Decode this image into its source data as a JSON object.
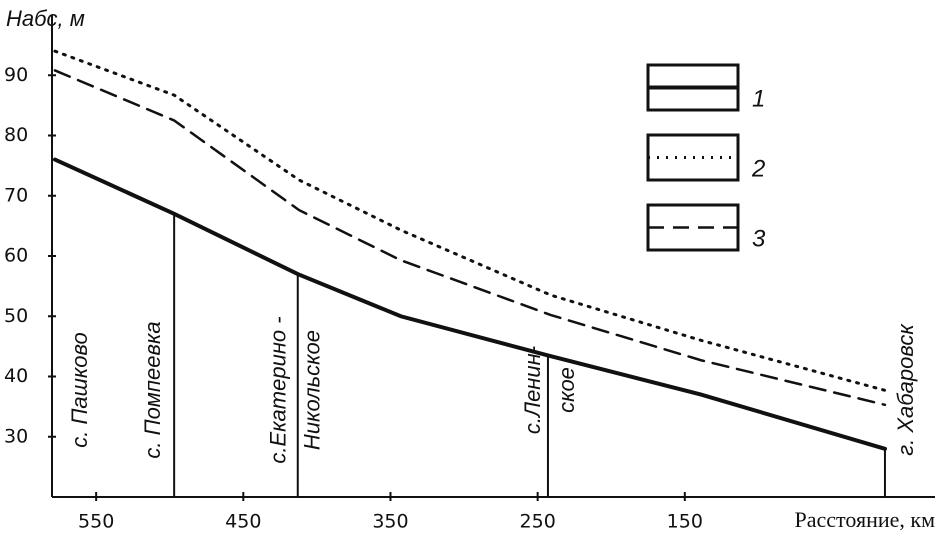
{
  "chart_data": {
    "type": "line",
    "y_label": "Hабс, м",
    "x_label": "Расстояние, км",
    "xlim": [
      580,
      -20
    ],
    "ylim": [
      20,
      100
    ],
    "xticks": [
      550,
      450,
      350,
      250,
      150
    ],
    "yticks": [
      30,
      40,
      50,
      60,
      70,
      80,
      90
    ],
    "legend": "upper right",
    "series": [
      {
        "name": "1",
        "color": "#111111",
        "style": "solid",
        "x": [
          578,
          497,
          413,
          343,
          243,
          139,
          14
        ],
        "values": [
          76,
          67,
          57,
          50,
          43.5,
          37,
          28
        ]
      },
      {
        "name": "2",
        "color": "#111111",
        "style": "dotted",
        "x": [
          578,
          497,
          412,
          343,
          241,
          139,
          14
        ],
        "values": [
          94,
          86.7,
          72.6,
          64.3,
          53.5,
          46,
          37.7
        ]
      },
      {
        "name": "3",
        "color": "#111111",
        "style": "dashed",
        "x": [
          578,
          497,
          412,
          343,
          241,
          139,
          14
        ],
        "values": [
          90.8,
          82.5,
          67.6,
          59.3,
          50.2,
          42.7,
          35.3
        ]
      }
    ],
    "annotations": [
      {
        "lines": [
          "с. Пашково"
        ],
        "x": 578
      },
      {
        "lines": [
          "с. Помпеевка"
        ],
        "x": 497
      },
      {
        "lines": [
          "с.Екатерино -",
          "Никольское"
        ],
        "x": 413
      },
      {
        "lines": [
          "с.Ленин-",
          "ское"
        ],
        "x": 243
      },
      {
        "lines": [
          "г. Хабаровск"
        ],
        "x": 14
      }
    ]
  }
}
